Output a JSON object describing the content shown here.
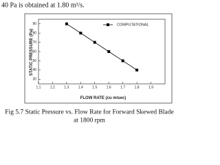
{
  "paragraph": "40 Pa is obtained at 1.80  m³/s.",
  "chart_data": {
    "type": "line",
    "xlabel": "FLOW RATE (cu m/sec)",
    "ylabel": "STATIC PRESSURE (Pa)",
    "x": [
      1.3,
      1.4,
      1.5,
      1.6,
      1.7,
      1.8
    ],
    "series": [
      {
        "name": "COMPUTATIONAL",
        "color": "#000000",
        "values": [
          90,
          80,
          70,
          60,
          50,
          40
        ]
      }
    ],
    "xlim": [
      1.1,
      2.0
    ],
    "xticks": [
      1.1,
      1.2,
      1.3,
      1.4,
      1.5,
      1.6,
      1.7,
      1.8,
      1.9
    ],
    "ylim": [
      25,
      95
    ],
    "yticks": [
      30,
      40,
      50,
      60,
      70,
      80,
      90
    ],
    "legend": "upper right"
  },
  "caption": [
    "Fig 5.7 Static Pressure vs. Flow Rate  for Forward Skewed Blade",
    "at 1800 rpm"
  ]
}
